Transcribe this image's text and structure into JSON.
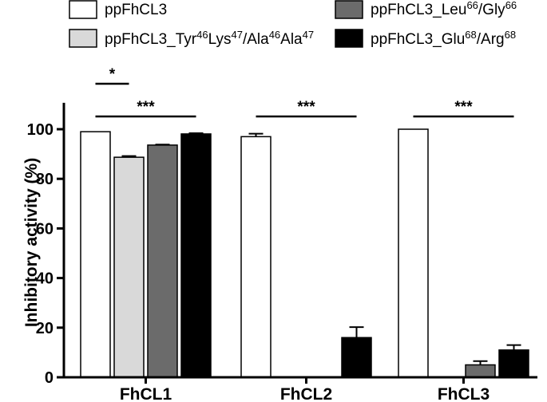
{
  "chart_data": {
    "type": "bar",
    "title": "",
    "xlabel": "",
    "ylabel": "Inhibitory activity (%)",
    "ylim": [
      0,
      110
    ],
    "yticks": [
      "0",
      "20",
      "40",
      "60",
      "80",
      "100"
    ],
    "categories": [
      "FhCL1",
      "FhCL2",
      "FhCL3"
    ],
    "legend_placement": "top",
    "series": [
      {
        "name": "ppFhCL3",
        "color": "#ffffff",
        "values": [
          99,
          97,
          100
        ],
        "errors": [
          0,
          1.2,
          0
        ]
      },
      {
        "name": "ppFhCL3_Tyr46Lys47/Ala46Ala47",
        "color": "#d9d9d9",
        "values": [
          88.7,
          0,
          0
        ],
        "errors": [
          0.5,
          0,
          0
        ]
      },
      {
        "name": "ppFhCL3_Leu66/Gly66",
        "color": "#6b6b6b",
        "values": [
          93.6,
          0,
          5
        ],
        "errors": [
          0.2,
          0,
          1.5
        ]
      },
      {
        "name": "ppFhCL3_Glu68/Arg68",
        "color": "#000000",
        "values": [
          98.1,
          16,
          11
        ],
        "errors": [
          0.3,
          4.2,
          2
        ]
      }
    ],
    "legend": [
      {
        "parts": [
          {
            "t": "ppFhCL3"
          }
        ]
      },
      {
        "parts": [
          {
            "t": "ppFhCL3_Tyr"
          },
          {
            "t": "46",
            "sup": true
          },
          {
            "t": "Lys"
          },
          {
            "t": "47",
            "sup": true
          },
          {
            "t": "/Ala"
          },
          {
            "t": "46",
            "sup": true
          },
          {
            "t": "Ala"
          },
          {
            "t": "47",
            "sup": true
          }
        ]
      },
      {
        "parts": [
          {
            "t": "ppFhCL3_Leu"
          },
          {
            "t": "66",
            "sup": true
          },
          {
            "t": "/Gly"
          },
          {
            "t": "66",
            "sup": true
          }
        ]
      },
      {
        "parts": [
          {
            "t": "ppFhCL3_Glu"
          },
          {
            "t": "68",
            "sup": true
          },
          {
            "t": "/Arg"
          },
          {
            "t": "68",
            "sup": true
          }
        ]
      }
    ],
    "significance": [
      {
        "label": "*",
        "category": "FhCL1",
        "from_series": 0,
        "to_series": 1,
        "level": "upper"
      },
      {
        "label": "***",
        "category": "FhCL1",
        "from_series": 0,
        "to_series": 3,
        "level": "lower"
      },
      {
        "label": "***",
        "category": "FhCL2",
        "from_series": 0,
        "to_series": 3,
        "level": "lower"
      },
      {
        "label": "***",
        "category": "FhCL3",
        "from_series": 0,
        "to_series": 3,
        "level": "lower"
      }
    ]
  }
}
